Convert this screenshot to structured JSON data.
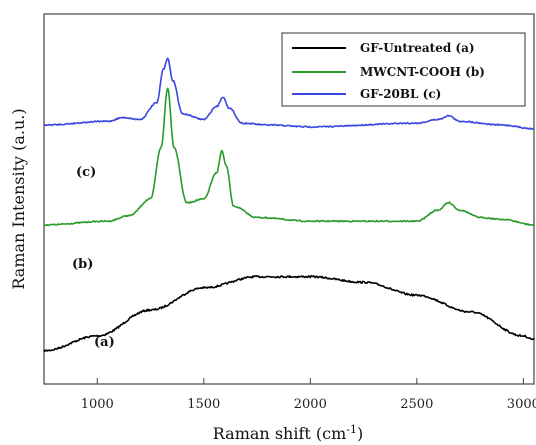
{
  "chart_data": {
    "type": "line",
    "xlabel": "Raman shift (cm",
    "xlabel_sup": "-1",
    "xlabel_close": ")",
    "ylabel": "Raman Intensity (a.u.)",
    "xlim": [
      750,
      3050
    ],
    "ylim": [
      0,
      100
    ],
    "x_ticks": [
      1000,
      1500,
      2000,
      2500,
      3000
    ],
    "y_ticks": [],
    "grid": false,
    "legend": "top-right",
    "series": [
      {
        "name": "GF-Untreated (a)",
        "label": "(a)",
        "color": "#000000",
        "x": [
          750,
          1000,
          1250,
          1500,
          1750,
          2000,
          2250,
          2500,
          2750,
          3000,
          3050
        ],
        "y": [
          9,
          13,
          20,
          26,
          29,
          29,
          27.5,
          24,
          19.5,
          13,
          12
        ]
      },
      {
        "name": "MWCNT-COOH (b)",
        "label": "(b)",
        "color": "#2a9a2a",
        "x": [
          750,
          1050,
          1150,
          1250,
          1300,
          1330,
          1360,
          1420,
          1500,
          1560,
          1585,
          1605,
          1640,
          1750,
          2000,
          2500,
          2600,
          2650,
          2700,
          2800,
          2900,
          3050
        ],
        "y": [
          43,
          44,
          45.5,
          50,
          64,
          80,
          64,
          49,
          50,
          57,
          63,
          59,
          48,
          45,
          44,
          44,
          47,
          49,
          47,
          45,
          44.5,
          43
        ]
      },
      {
        "name": "GF-20BL (c)",
        "label": "(c)",
        "color": "#3a46e0",
        "x": [
          750,
          1050,
          1120,
          1200,
          1280,
          1310,
          1330,
          1355,
          1400,
          1500,
          1560,
          1590,
          1620,
          1680,
          1800,
          2000,
          2500,
          2600,
          2650,
          2700,
          2900,
          3050
        ],
        "y": [
          70,
          71,
          72,
          71.5,
          76,
          85,
          88,
          82,
          73,
          71.5,
          75,
          77.5,
          74.5,
          70.5,
          70,
          69.5,
          70.5,
          71.5,
          72.5,
          71,
          70,
          69
        ]
      }
    ]
  }
}
